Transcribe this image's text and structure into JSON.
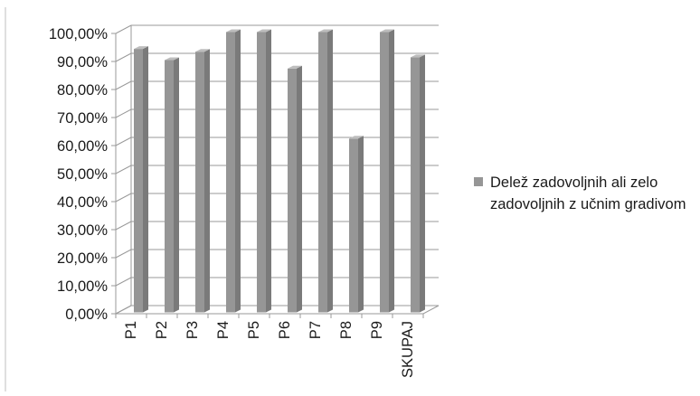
{
  "chart_data": {
    "type": "bar",
    "style": "3d-clustered-column",
    "title": "",
    "xlabel": "",
    "ylabel": "",
    "categories": [
      "P1",
      "P2",
      "P3",
      "P4",
      "P5",
      "P6",
      "P7",
      "P8",
      "P9",
      "SKUPAJ"
    ],
    "series": [
      {
        "name": "Delež zadovoljnih ali zelo zadovoljnih z učnim gradivom",
        "values": [
          0.94,
          0.9,
          0.93,
          1.0,
          1.0,
          0.87,
          1.0,
          0.62,
          1.0,
          0.91
        ],
        "color": "#969696"
      }
    ],
    "ylim": [
      0,
      1
    ],
    "yticks": [
      0,
      0.1,
      0.2,
      0.3,
      0.4,
      0.5,
      0.6,
      0.7,
      0.8,
      0.9,
      1.0
    ],
    "ytick_labels": [
      "0,00%",
      "10,00%",
      "20,00%",
      "30,00%",
      "40,00%",
      "50,00%",
      "60,00%",
      "70,00%",
      "80,00%",
      "90,00%",
      "100,00%"
    ],
    "grid": true,
    "legend_position": "right",
    "colors": {
      "bar": "#969696",
      "bar_dark": "#7a7a7a",
      "bar_light": "#bdbdbd",
      "grid": "#9a9a9a"
    }
  },
  "legend": {
    "label": "Delež zadovoljnih ali zelo zadovoljnih z učnim gradivom"
  }
}
